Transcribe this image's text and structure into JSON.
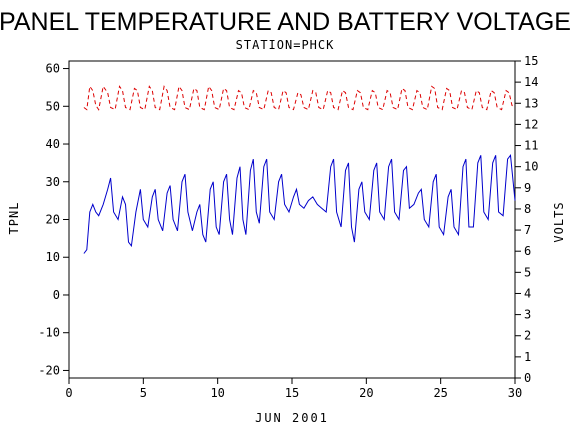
{
  "chart_data": {
    "type": "line",
    "title": "PANEL TEMPERATURE AND BATTERY VOLTAGE",
    "subtitle": "STATION=PHCK",
    "xlabel": "JUN 2001",
    "ylabel_left": "TPNL",
    "ylabel_right": "VOLTS",
    "xlim": [
      0,
      30
    ],
    "ylim_left": [
      -22,
      62
    ],
    "ylim_right": [
      0,
      15
    ],
    "xticks": [
      0,
      5,
      10,
      15,
      20,
      25,
      30
    ],
    "yticks_left": [
      -20,
      -10,
      0,
      10,
      20,
      30,
      40,
      50,
      60
    ],
    "yticks_right": [
      0,
      1,
      2,
      3,
      4,
      5,
      6,
      7,
      8,
      9,
      10,
      11,
      12,
      13,
      14,
      15
    ],
    "grid": false,
    "series": [
      {
        "axis": "left",
        "color": "#0000cc",
        "dash": "solid",
        "points": [
          [
            1.0,
            11
          ],
          [
            1.2,
            12
          ],
          [
            1.4,
            22
          ],
          [
            1.6,
            24
          ],
          [
            1.8,
            22
          ],
          [
            2.0,
            21
          ],
          [
            2.3,
            24
          ],
          [
            2.6,
            28
          ],
          [
            2.8,
            31
          ],
          [
            3.0,
            22
          ],
          [
            3.3,
            20
          ],
          [
            3.6,
            26
          ],
          [
            3.8,
            24
          ],
          [
            4.0,
            14
          ],
          [
            4.2,
            13
          ],
          [
            4.5,
            22
          ],
          [
            4.8,
            28
          ],
          [
            5.0,
            20
          ],
          [
            5.3,
            18
          ],
          [
            5.6,
            26
          ],
          [
            5.8,
            28
          ],
          [
            6.0,
            20
          ],
          [
            6.3,
            17
          ],
          [
            6.6,
            27
          ],
          [
            6.8,
            29
          ],
          [
            7.0,
            20
          ],
          [
            7.3,
            17
          ],
          [
            7.6,
            30
          ],
          [
            7.8,
            32
          ],
          [
            8.0,
            22
          ],
          [
            8.3,
            17
          ],
          [
            8.6,
            22
          ],
          [
            8.8,
            24
          ],
          [
            9.0,
            16
          ],
          [
            9.2,
            14
          ],
          [
            9.5,
            28
          ],
          [
            9.7,
            30
          ],
          [
            9.9,
            18
          ],
          [
            10.1,
            16
          ],
          [
            10.4,
            30
          ],
          [
            10.6,
            32
          ],
          [
            10.8,
            20
          ],
          [
            11.0,
            16
          ],
          [
            11.3,
            31
          ],
          [
            11.5,
            34
          ],
          [
            11.7,
            20
          ],
          [
            11.9,
            16
          ],
          [
            12.2,
            33
          ],
          [
            12.4,
            36
          ],
          [
            12.6,
            22
          ],
          [
            12.8,
            19
          ],
          [
            13.1,
            34
          ],
          [
            13.3,
            36
          ],
          [
            13.5,
            22
          ],
          [
            13.8,
            20
          ],
          [
            14.1,
            30
          ],
          [
            14.3,
            32
          ],
          [
            14.5,
            24
          ],
          [
            14.8,
            22
          ],
          [
            15.1,
            26
          ],
          [
            15.3,
            28
          ],
          [
            15.5,
            24
          ],
          [
            15.8,
            23
          ],
          [
            16.1,
            25
          ],
          [
            16.4,
            26
          ],
          [
            16.7,
            24
          ],
          [
            17.0,
            23
          ],
          [
            17.3,
            22
          ],
          [
            17.6,
            34
          ],
          [
            17.8,
            36
          ],
          [
            18.0,
            22
          ],
          [
            18.3,
            18
          ],
          [
            18.6,
            33
          ],
          [
            18.8,
            35
          ],
          [
            19.0,
            18
          ],
          [
            19.2,
            14
          ],
          [
            19.5,
            28
          ],
          [
            19.7,
            30
          ],
          [
            19.9,
            22
          ],
          [
            20.2,
            20
          ],
          [
            20.5,
            33
          ],
          [
            20.7,
            35
          ],
          [
            20.9,
            22
          ],
          [
            21.2,
            20
          ],
          [
            21.5,
            34
          ],
          [
            21.7,
            36
          ],
          [
            21.9,
            22
          ],
          [
            22.2,
            20
          ],
          [
            22.5,
            33
          ],
          [
            22.7,
            34
          ],
          [
            22.9,
            23
          ],
          [
            23.2,
            24
          ],
          [
            23.5,
            27
          ],
          [
            23.7,
            28
          ],
          [
            23.9,
            20
          ],
          [
            24.2,
            18
          ],
          [
            24.5,
            30
          ],
          [
            24.7,
            32
          ],
          [
            24.9,
            18
          ],
          [
            25.2,
            16
          ],
          [
            25.5,
            26
          ],
          [
            25.7,
            28
          ],
          [
            25.9,
            18
          ],
          [
            26.2,
            16
          ],
          [
            26.5,
            34
          ],
          [
            26.7,
            36
          ],
          [
            26.9,
            18
          ],
          [
            27.2,
            18
          ],
          [
            27.5,
            35
          ],
          [
            27.7,
            37
          ],
          [
            27.9,
            22
          ],
          [
            28.2,
            20
          ],
          [
            28.5,
            35
          ],
          [
            28.7,
            37
          ],
          [
            28.9,
            22
          ],
          [
            29.2,
            21
          ],
          [
            29.5,
            36
          ],
          [
            29.7,
            37
          ],
          [
            30.0,
            25
          ]
        ]
      },
      {
        "axis": "right",
        "color": "#dd0000",
        "dash": "4,3",
        "points": [
          [
            1.0,
            12.8
          ],
          [
            1.2,
            12.7
          ],
          [
            1.4,
            13.8
          ],
          [
            1.6,
            13.6
          ],
          [
            1.8,
            12.9
          ],
          [
            2.0,
            12.7
          ],
          [
            2.3,
            13.8
          ],
          [
            2.6,
            13.5
          ],
          [
            2.8,
            12.8
          ],
          [
            3.1,
            12.7
          ],
          [
            3.4,
            13.8
          ],
          [
            3.6,
            13.6
          ],
          [
            3.8,
            12.8
          ],
          [
            4.1,
            12.7
          ],
          [
            4.4,
            13.7
          ],
          [
            4.6,
            13.6
          ],
          [
            4.8,
            12.8
          ],
          [
            5.1,
            12.7
          ],
          [
            5.4,
            13.8
          ],
          [
            5.6,
            13.6
          ],
          [
            5.8,
            12.8
          ],
          [
            6.1,
            12.7
          ],
          [
            6.4,
            13.8
          ],
          [
            6.6,
            13.6
          ],
          [
            6.8,
            12.8
          ],
          [
            7.1,
            12.7
          ],
          [
            7.4,
            13.8
          ],
          [
            7.6,
            13.6
          ],
          [
            7.8,
            12.8
          ],
          [
            8.1,
            12.7
          ],
          [
            8.4,
            13.7
          ],
          [
            8.6,
            13.6
          ],
          [
            8.8,
            12.8
          ],
          [
            9.1,
            12.7
          ],
          [
            9.4,
            13.8
          ],
          [
            9.6,
            13.6
          ],
          [
            9.8,
            12.8
          ],
          [
            10.1,
            12.7
          ],
          [
            10.4,
            13.7
          ],
          [
            10.6,
            13.6
          ],
          [
            10.8,
            12.8
          ],
          [
            11.1,
            12.7
          ],
          [
            11.4,
            13.6
          ],
          [
            11.6,
            13.5
          ],
          [
            11.8,
            12.8
          ],
          [
            12.1,
            12.7
          ],
          [
            12.4,
            13.6
          ],
          [
            12.6,
            13.5
          ],
          [
            12.8,
            12.8
          ],
          [
            13.1,
            12.7
          ],
          [
            13.4,
            13.6
          ],
          [
            13.6,
            13.5
          ],
          [
            13.8,
            12.8
          ],
          [
            14.1,
            12.7
          ],
          [
            14.4,
            13.6
          ],
          [
            14.6,
            13.5
          ],
          [
            14.8,
            12.8
          ],
          [
            15.1,
            12.7
          ],
          [
            15.4,
            13.5
          ],
          [
            15.6,
            13.4
          ],
          [
            15.8,
            12.8
          ],
          [
            16.1,
            12.7
          ],
          [
            16.4,
            13.6
          ],
          [
            16.6,
            13.5
          ],
          [
            16.8,
            12.8
          ],
          [
            17.1,
            12.7
          ],
          [
            17.4,
            13.6
          ],
          [
            17.6,
            13.5
          ],
          [
            17.8,
            12.8
          ],
          [
            18.1,
            12.7
          ],
          [
            18.4,
            13.6
          ],
          [
            18.6,
            13.5
          ],
          [
            18.8,
            12.8
          ],
          [
            19.1,
            12.7
          ],
          [
            19.4,
            13.6
          ],
          [
            19.6,
            13.5
          ],
          [
            19.8,
            12.8
          ],
          [
            20.1,
            12.7
          ],
          [
            20.4,
            13.6
          ],
          [
            20.6,
            13.5
          ],
          [
            20.8,
            12.8
          ],
          [
            21.1,
            12.7
          ],
          [
            21.4,
            13.6
          ],
          [
            21.6,
            13.5
          ],
          [
            21.8,
            12.8
          ],
          [
            22.1,
            12.7
          ],
          [
            22.4,
            13.7
          ],
          [
            22.6,
            13.6
          ],
          [
            22.8,
            12.8
          ],
          [
            23.1,
            12.7
          ],
          [
            23.4,
            13.6
          ],
          [
            23.6,
            13.5
          ],
          [
            23.8,
            12.8
          ],
          [
            24.1,
            12.7
          ],
          [
            24.4,
            13.8
          ],
          [
            24.6,
            13.7
          ],
          [
            24.8,
            12.8
          ],
          [
            25.1,
            12.7
          ],
          [
            25.4,
            13.7
          ],
          [
            25.6,
            13.6
          ],
          [
            25.8,
            12.8
          ],
          [
            26.1,
            12.7
          ],
          [
            26.4,
            13.6
          ],
          [
            26.6,
            13.5
          ],
          [
            26.8,
            12.8
          ],
          [
            27.1,
            12.7
          ],
          [
            27.4,
            13.6
          ],
          [
            27.6,
            13.5
          ],
          [
            27.8,
            12.8
          ],
          [
            28.1,
            12.7
          ],
          [
            28.4,
            13.6
          ],
          [
            28.6,
            13.5
          ],
          [
            28.8,
            12.8
          ],
          [
            29.1,
            12.7
          ],
          [
            29.4,
            13.6
          ],
          [
            29.6,
            13.5
          ],
          [
            29.8,
            12.9
          ],
          [
            30.0,
            12.8
          ]
        ]
      }
    ]
  }
}
